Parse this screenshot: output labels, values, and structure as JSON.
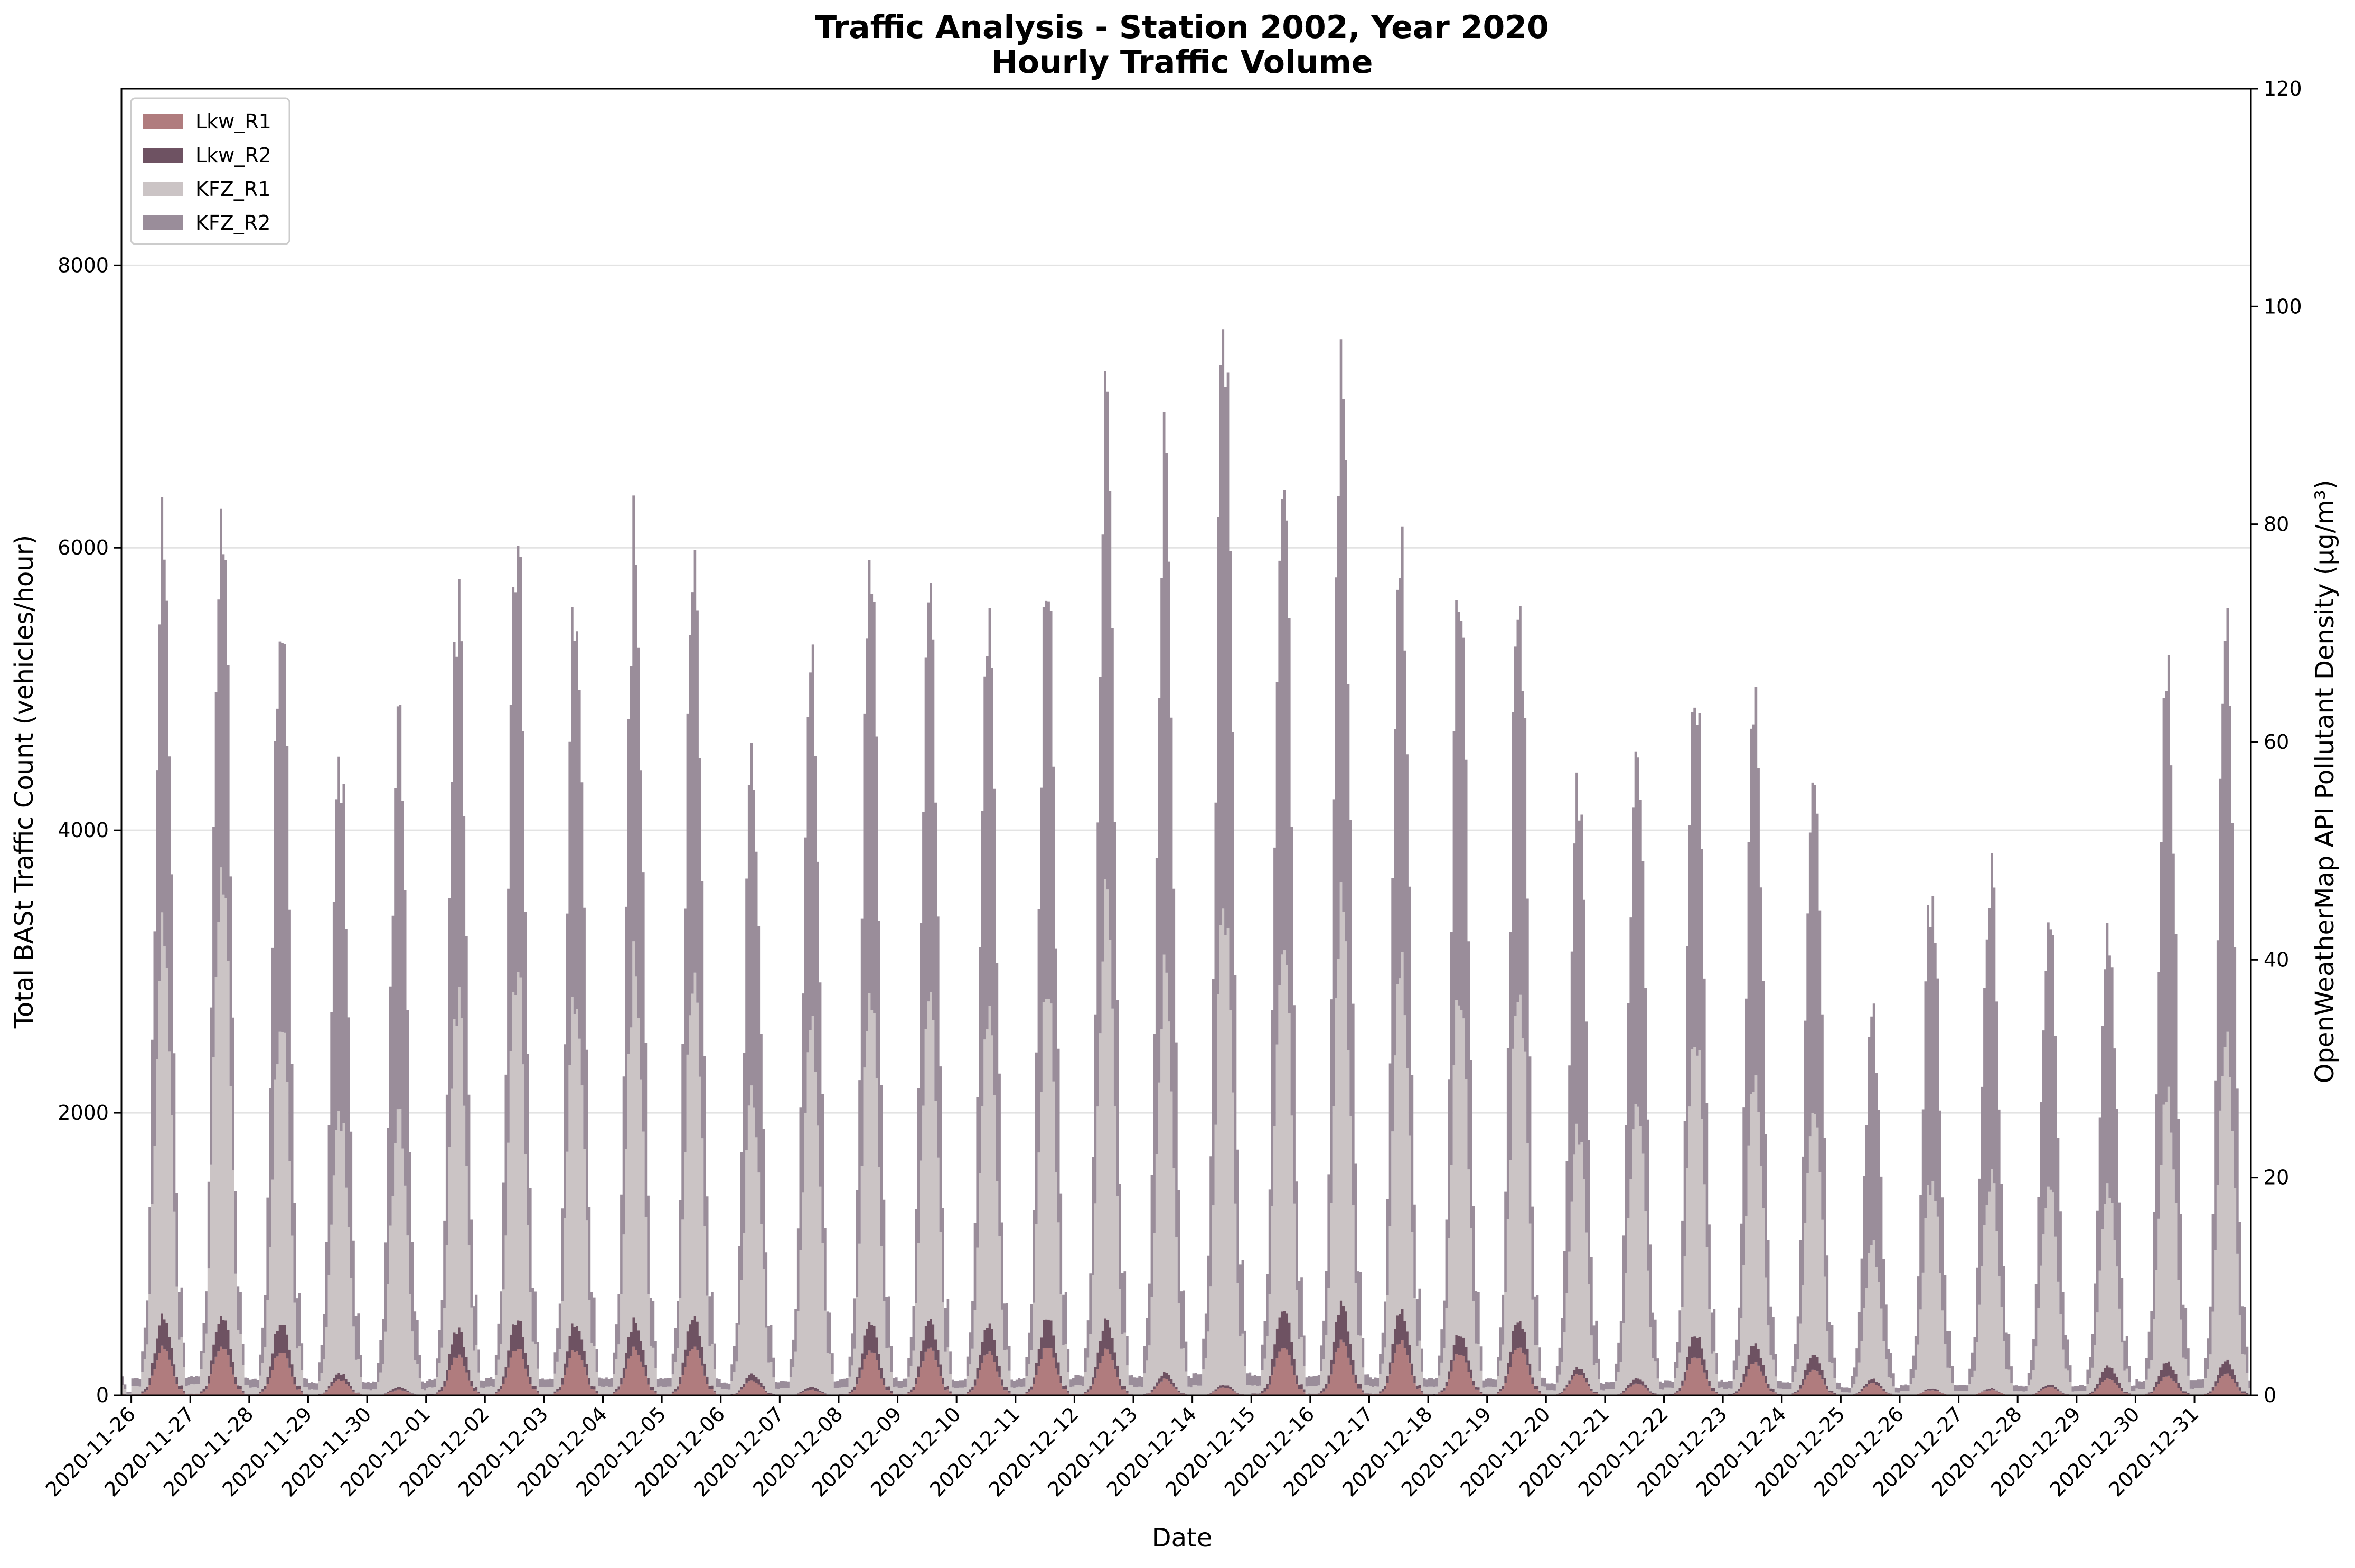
{
  "chart_data": {
    "type": "area",
    "stacked": true,
    "title": "Traffic Analysis - Station 2002, Year 2020",
    "subtitle": "Hourly Traffic Volume",
    "xlabel": "Date",
    "ylabel": "Total BASt Traffic Count (vehicles/hour)",
    "y2label": "OpenWeatherMap API Pollutant Density (µg/m³)",
    "ylim": [
      0,
      9250
    ],
    "y2lim": [
      0,
      120
    ],
    "yticks": [
      0,
      2000,
      4000,
      6000,
      8000
    ],
    "y2ticks": [
      0,
      20,
      40,
      60,
      80,
      100,
      120
    ],
    "grid": true,
    "legend_position": "top-left",
    "x_start": "2020-11-25 20:00",
    "x_end": "2020-12-31 23:00",
    "categories": [
      "2020-11-26",
      "2020-11-27",
      "2020-11-28",
      "2020-11-29",
      "2020-11-30",
      "2020-12-01",
      "2020-12-02",
      "2020-12-03",
      "2020-12-04",
      "2020-12-05",
      "2020-12-06",
      "2020-12-07",
      "2020-12-08",
      "2020-12-09",
      "2020-12-10",
      "2020-12-11",
      "2020-12-12",
      "2020-12-13",
      "2020-12-14",
      "2020-12-15",
      "2020-12-16",
      "2020-12-17",
      "2020-12-18",
      "2020-12-19",
      "2020-12-20",
      "2020-12-21",
      "2020-12-22",
      "2020-12-23",
      "2020-12-24",
      "2020-12-25",
      "2020-12-26",
      "2020-12-27",
      "2020-12-28",
      "2020-12-29",
      "2020-12-30",
      "2020-12-31"
    ],
    "series": [
      {
        "name": "Lkw_R1",
        "color": "#b07c7e",
        "daily_peak": [
          360,
          380,
          350,
          120,
          40,
          300,
          360,
          360,
          350,
          370,
          110,
          40,
          340,
          350,
          330,
          370,
          340,
          120,
          60,
          380,
          400,
          400,
          320,
          380,
          160,
          90,
          300,
          250,
          200,
          90,
          40,
          40,
          60,
          130,
          150,
          160
        ]
      },
      {
        "name": "Lkw_R2",
        "color": "#6e5262",
        "daily_peak": [
          230,
          240,
          230,
          50,
          20,
          200,
          220,
          210,
          210,
          230,
          50,
          20,
          220,
          210,
          210,
          220,
          220,
          50,
          20,
          300,
          280,
          230,
          150,
          210,
          50,
          40,
          170,
          140,
          120,
          30,
          10,
          10,
          20,
          100,
          110,
          100
        ]
      },
      {
        "name": "KFZ_R1",
        "color": "#cbc4c5",
        "daily_peak": [
          2900,
          3500,
          2400,
          2000,
          2000,
          2500,
          2700,
          2600,
          2700,
          2600,
          2100,
          2700,
          2500,
          2400,
          2400,
          2500,
          3200,
          3000,
          3700,
          2900,
          3000,
          2600,
          2600,
          2600,
          1800,
          2100,
          2300,
          2000,
          1900,
          1000,
          1600,
          1600,
          1500,
          1400,
          2100,
          2400
        ]
      },
      {
        "name": "KFZ_R2",
        "color": "#9a8d9a",
        "daily_peak": [
          3000,
          2800,
          3200,
          2700,
          2900,
          3000,
          3300,
          3100,
          3200,
          3200,
          2500,
          2700,
          3300,
          3000,
          3000,
          3100,
          3700,
          3900,
          4500,
          3700,
          3900,
          3100,
          3100,
          3100,
          2600,
          2700,
          2700,
          2900,
          2600,
          1700,
          2200,
          2300,
          2000,
          2000,
          3300,
          3100
        ]
      }
    ]
  }
}
